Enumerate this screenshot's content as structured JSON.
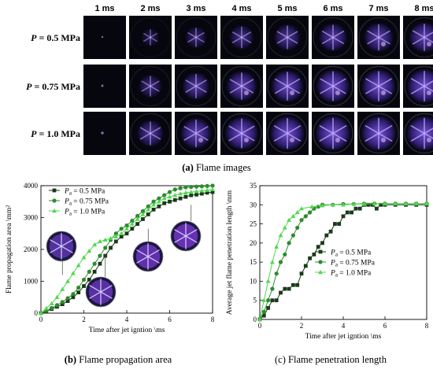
{
  "figure_a": {
    "time_labels": [
      "1 ms",
      "2 ms",
      "3 ms",
      "4 ms",
      "5 ms",
      "6 ms",
      "7 ms",
      "8 ms"
    ],
    "rows": [
      {
        "label_prefix": "P",
        "label_value": " = 0.5 MPa",
        "intensity": [
          0.02,
          0.22,
          0.34,
          0.44,
          0.52,
          0.58,
          0.62,
          0.66
        ]
      },
      {
        "label_prefix": "P",
        "label_value": " = 0.75 MPa",
        "intensity": [
          0.05,
          0.4,
          0.55,
          0.66,
          0.72,
          0.76,
          0.78,
          0.8
        ]
      },
      {
        "label_prefix": "P",
        "label_value": " = 1.0 MPa",
        "intensity": [
          0.08,
          0.52,
          0.68,
          0.76,
          0.8,
          0.82,
          0.82,
          0.82
        ]
      }
    ],
    "caption_tag": "(a)",
    "caption_text": " Flame images"
  },
  "chart_data": [
    {
      "type": "line",
      "xlabel": "Time after jet igntion \\ms",
      "ylabel": "Flame propagation area \\mm²",
      "xlim": [
        0,
        8
      ],
      "ylim": [
        0,
        4000
      ],
      "xticks": [
        "0",
        "2",
        "4",
        "6",
        "8"
      ],
      "yticks": [
        "0",
        "1000",
        "2000",
        "3000",
        "4000"
      ],
      "legend_position": "top-left",
      "series": [
        {
          "name_sym": "P",
          "name_sub": "a",
          "name_val": " = 0.5 MPa",
          "marker": "square",
          "color": "#1a3a1a",
          "x": [
            0,
            0.25,
            0.5,
            0.75,
            1,
            1.25,
            1.5,
            1.75,
            2,
            2.25,
            2.5,
            2.75,
            3,
            3.25,
            3.5,
            3.75,
            4,
            4.25,
            4.5,
            4.75,
            5,
            5.25,
            5.5,
            5.75,
            6,
            6.25,
            6.5,
            6.75,
            7,
            7.25,
            7.5,
            7.75,
            8
          ],
          "y": [
            0,
            60,
            130,
            200,
            280,
            380,
            500,
            650,
            850,
            1050,
            1300,
            1550,
            1800,
            2050,
            2250,
            2400,
            2500,
            2650,
            2800,
            2950,
            3100,
            3250,
            3350,
            3450,
            3500,
            3550,
            3600,
            3650,
            3700,
            3720,
            3750,
            3780,
            3800
          ]
        },
        {
          "name_sym": "P",
          "name_sub": "a",
          "name_val": " = 0.75 MPa",
          "marker": "circle",
          "color": "#2e8b2e",
          "x": [
            0,
            0.25,
            0.5,
            0.75,
            1,
            1.25,
            1.5,
            1.75,
            2,
            2.25,
            2.5,
            2.75,
            3,
            3.25,
            3.5,
            3.75,
            4,
            4.25,
            4.5,
            4.75,
            5,
            5.25,
            5.5,
            5.75,
            6,
            6.25,
            6.5,
            6.75,
            7,
            7.25,
            7.5,
            7.75,
            8
          ],
          "y": [
            0,
            80,
            160,
            250,
            350,
            470,
            600,
            800,
            1050,
            1300,
            1550,
            1800,
            2050,
            2300,
            2500,
            2650,
            2750,
            2900,
            3050,
            3200,
            3350,
            3500,
            3600,
            3700,
            3800,
            3880,
            3920,
            3950,
            3960,
            3970,
            3980,
            3990,
            4000
          ]
        },
        {
          "name_sym": "P",
          "name_sub": "a",
          "name_val": " = 1.0 MPa",
          "marker": "triangle",
          "color": "#4fd84f",
          "x": [
            0,
            0.25,
            0.5,
            0.75,
            1,
            1.25,
            1.5,
            1.75,
            2,
            2.25,
            2.5,
            2.75,
            3,
            3.25,
            3.5,
            3.75,
            4,
            4.25,
            4.5,
            4.75,
            5,
            5.25,
            5.5,
            5.75,
            6,
            6.25,
            6.5,
            6.75,
            7,
            7.25,
            7.5,
            7.75,
            8
          ],
          "y": [
            0,
            150,
            300,
            500,
            750,
            1000,
            1250,
            1500,
            1750,
            1950,
            2150,
            2250,
            2300,
            2350,
            2400,
            2500,
            2650,
            2800,
            2950,
            3100,
            3250,
            3400,
            3500,
            3600,
            3650,
            3700,
            3750,
            3780,
            3800,
            3820,
            3840,
            3860,
            3880
          ]
        }
      ]
    },
    {
      "type": "line",
      "xlabel": "Time after jet igntion \\ms",
      "ylabel": "Average jet flame penetration length \\mm",
      "xlim": [
        0,
        8
      ],
      "ylim": [
        0,
        35
      ],
      "xticks": [
        "0",
        "2",
        "4",
        "6",
        "8"
      ],
      "yticks": [
        "0",
        "5",
        "10",
        "15",
        "20",
        "25",
        "30",
        "35"
      ],
      "legend_position": "bottom-right",
      "series": [
        {
          "name_sym": "P",
          "name_sub": "a",
          "name_val": " = 0.5 MPa",
          "marker": "square",
          "color": "#1a3a1a",
          "x": [
            0,
            0.2,
            0.4,
            0.6,
            0.8,
            1,
            1.2,
            1.4,
            1.6,
            1.8,
            2,
            2.2,
            2.4,
            2.6,
            2.8,
            3,
            3.2,
            3.4,
            3.6,
            3.8,
            4,
            4.2,
            4.4,
            4.6,
            4.8,
            5,
            5.2,
            5.4,
            5.6,
            5.8,
            6,
            6.5,
            7,
            7.5,
            8
          ],
          "y": [
            0,
            1,
            3,
            5,
            5,
            7,
            8,
            8,
            9,
            9,
            12,
            14,
            16,
            17,
            19,
            20,
            22,
            23,
            25,
            25,
            27,
            28,
            28,
            29,
            29,
            30,
            30,
            30,
            29,
            30,
            30,
            30,
            30,
            30,
            30
          ]
        },
        {
          "name_sym": "P",
          "name_sub": "a",
          "name_val": " = 0.75 MPa",
          "marker": "circle",
          "color": "#2e8b2e",
          "x": [
            0,
            0.2,
            0.4,
            0.6,
            0.8,
            1,
            1.2,
            1.4,
            1.6,
            1.8,
            2,
            2.2,
            2.4,
            2.6,
            2.8,
            3,
            3.5,
            4,
            4.5,
            5,
            5.5,
            6,
            6.5,
            7,
            7.5,
            8
          ],
          "y": [
            0,
            2,
            5,
            8,
            12,
            15,
            17,
            20,
            22,
            24,
            26,
            27,
            28,
            29,
            29.5,
            30,
            30,
            30.2,
            30.2,
            30.3,
            30.3,
            30.3,
            30.3,
            30.3,
            30.3,
            30.3
          ]
        },
        {
          "name_sym": "P",
          "name_sub": "a",
          "name_val": " = 1.0 MPa",
          "marker": "triangle",
          "color": "#4fd84f",
          "x": [
            0,
            0.2,
            0.4,
            0.6,
            0.8,
            1,
            1.2,
            1.4,
            1.6,
            1.8,
            2,
            2.5,
            3,
            3.5,
            4,
            4.5,
            5,
            5.5,
            6,
            6.5,
            7,
            7.5,
            8
          ],
          "y": [
            0,
            5,
            10,
            15,
            19,
            22,
            24,
            26,
            27,
            28,
            29,
            29.5,
            29.8,
            30,
            30,
            30.2,
            30.2,
            30.3,
            30.3,
            30.3,
            30.3,
            30.3,
            30.3
          ]
        }
      ]
    }
  ],
  "captions": {
    "b_tag": "(b)",
    "b_text": " Flame propagation area",
    "c_tag": "(c)",
    "c_text": " Flame penetration length"
  }
}
